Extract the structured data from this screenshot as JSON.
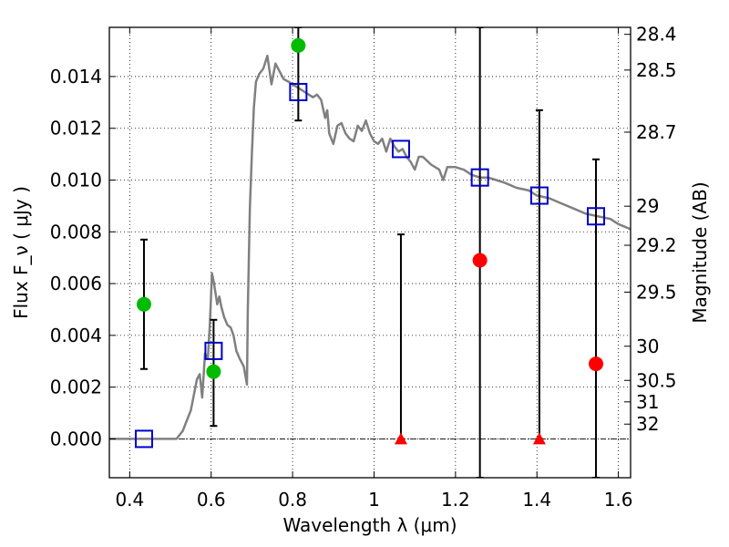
{
  "chart_data": {
    "type": "scatter",
    "xlabel": "Wavelength  λ (μm)",
    "ylabel": "Flux  F_ν  ( μJy )",
    "ylabel_right": "Magnitude (AB)",
    "xlim": [
      0.35,
      1.63
    ],
    "ylim": [
      -0.0015,
      0.0159
    ],
    "grid": true,
    "x_ticks": [
      {
        "value": 0.4,
        "label": "0.4"
      },
      {
        "value": 0.6,
        "label": "0.6"
      },
      {
        "value": 0.8,
        "label": "0.8"
      },
      {
        "value": 1.0,
        "label": "1"
      },
      {
        "value": 1.2,
        "label": "1.2"
      },
      {
        "value": 1.4,
        "label": "1.4"
      },
      {
        "value": 1.6,
        "label": "1.6"
      }
    ],
    "y_ticks": [
      {
        "value": 0.0,
        "label": "0.000"
      },
      {
        "value": 0.002,
        "label": "0.002"
      },
      {
        "value": 0.004,
        "label": "0.004"
      },
      {
        "value": 0.006,
        "label": "0.006"
      },
      {
        "value": 0.008,
        "label": "0.008"
      },
      {
        "value": 0.01,
        "label": "0.010"
      },
      {
        "value": 0.012,
        "label": "0.012"
      },
      {
        "value": 0.014,
        "label": "0.014"
      }
    ],
    "right_ticks": [
      {
        "label": "28.4",
        "flux": 0.01563
      },
      {
        "label": "28.5",
        "flux": 0.01425
      },
      {
        "label": "28.7",
        "flux": 0.01185
      },
      {
        "label": "29",
        "flux": 0.00899
      },
      {
        "label": "29.2",
        "flux": 0.00748
      },
      {
        "label": "29.5",
        "flux": 0.00567
      },
      {
        "label": "30",
        "flux": 0.00358
      },
      {
        "label": "30.5",
        "flux": 0.00226
      },
      {
        "label": "31",
        "flux": 0.00143
      },
      {
        "label": "32",
        "flux": 0.00057
      }
    ],
    "colors": {
      "model": "#808080",
      "detected": "#00bb00",
      "undetected": "#ff0000",
      "model_phot": "#0000cc",
      "errorbar": "#000000"
    },
    "model_spectrum": [
      [
        0.35,
        0.0
      ],
      [
        0.515,
        0.0
      ],
      [
        0.53,
        0.0003
      ],
      [
        0.55,
        0.0011
      ],
      [
        0.565,
        0.0023
      ],
      [
        0.572,
        0.0025
      ],
      [
        0.578,
        0.0016
      ],
      [
        0.585,
        0.0033
      ],
      [
        0.592,
        0.0031
      ],
      [
        0.597,
        0.0045
      ],
      [
        0.602,
        0.0064
      ],
      [
        0.606,
        0.0061
      ],
      [
        0.61,
        0.0057
      ],
      [
        0.615,
        0.0052
      ],
      [
        0.62,
        0.0055
      ],
      [
        0.625,
        0.0051
      ],
      [
        0.632,
        0.0047
      ],
      [
        0.64,
        0.0044
      ],
      [
        0.648,
        0.0043
      ],
      [
        0.655,
        0.004
      ],
      [
        0.662,
        0.0034
      ],
      [
        0.67,
        0.0031
      ],
      [
        0.68,
        0.0028
      ],
      [
        0.688,
        0.0021
      ],
      [
        0.69,
        0.0049
      ],
      [
        0.695,
        0.0089
      ],
      [
        0.7,
        0.011
      ],
      [
        0.705,
        0.0128
      ],
      [
        0.71,
        0.0138
      ],
      [
        0.718,
        0.0141
      ],
      [
        0.728,
        0.0143
      ],
      [
        0.738,
        0.0148
      ],
      [
        0.748,
        0.0137
      ],
      [
        0.758,
        0.0145
      ],
      [
        0.768,
        0.0142
      ],
      [
        0.778,
        0.0139
      ],
      [
        0.79,
        0.0138
      ],
      [
        0.8,
        0.0137
      ],
      [
        0.81,
        0.0136
      ],
      [
        0.82,
        0.0135
      ],
      [
        0.83,
        0.0134
      ],
      [
        0.84,
        0.0133
      ],
      [
        0.85,
        0.0132
      ],
      [
        0.86,
        0.0133
      ],
      [
        0.87,
        0.0131
      ],
      [
        0.88,
        0.0124
      ],
      [
        0.885,
        0.0127
      ],
      [
        0.89,
        0.0118
      ],
      [
        0.9,
        0.0114
      ],
      [
        0.91,
        0.0121
      ],
      [
        0.92,
        0.0122
      ],
      [
        0.93,
        0.0118
      ],
      [
        0.94,
        0.0116
      ],
      [
        0.95,
        0.0115
      ],
      [
        0.96,
        0.0121
      ],
      [
        0.97,
        0.0119
      ],
      [
        0.98,
        0.0123
      ],
      [
        0.99,
        0.0118
      ],
      [
        1.0,
        0.0115
      ],
      [
        1.01,
        0.0114
      ],
      [
        1.02,
        0.0116
      ],
      [
        1.03,
        0.0111
      ],
      [
        1.04,
        0.0116
      ],
      [
        1.05,
        0.0113
      ],
      [
        1.06,
        0.0111
      ],
      [
        1.07,
        0.0112
      ],
      [
        1.08,
        0.0109
      ],
      [
        1.09,
        0.0107
      ],
      [
        1.1,
        0.0104
      ],
      [
        1.11,
        0.0109
      ],
      [
        1.12,
        0.0109
      ],
      [
        1.14,
        0.0106
      ],
      [
        1.16,
        0.0104
      ],
      [
        1.17,
        0.01
      ],
      [
        1.18,
        0.0105
      ],
      [
        1.2,
        0.0105
      ],
      [
        1.22,
        0.0104
      ],
      [
        1.24,
        0.0102
      ],
      [
        1.26,
        0.0101
      ],
      [
        1.28,
        0.0101
      ],
      [
        1.3,
        0.01
      ],
      [
        1.32,
        0.0099
      ],
      [
        1.35,
        0.0097
      ],
      [
        1.38,
        0.0096
      ],
      [
        1.4,
        0.0094
      ],
      [
        1.43,
        0.0093
      ],
      [
        1.46,
        0.0091
      ],
      [
        1.49,
        0.0089
      ],
      [
        1.52,
        0.0087
      ],
      [
        1.55,
        0.0086
      ],
      [
        1.58,
        0.0085
      ],
      [
        1.6,
        0.0083
      ],
      [
        1.63,
        0.0081
      ]
    ],
    "model_photometry": [
      {
        "x": 0.435,
        "y": 0.0
      },
      {
        "x": 0.606,
        "y": 0.0034
      },
      {
        "x": 0.814,
        "y": 0.0134
      },
      {
        "x": 1.066,
        "y": 0.0112
      },
      {
        "x": 1.26,
        "y": 0.0101
      },
      {
        "x": 1.406,
        "y": 0.0094
      },
      {
        "x": 1.545,
        "y": 0.0086
      }
    ],
    "detections": [
      {
        "x": 0.435,
        "y": 0.0052,
        "yerr_low": 0.0027,
        "yerr_high": 0.0077
      },
      {
        "x": 0.606,
        "y": 0.0026,
        "yerr_low": 0.0005,
        "yerr_high": 0.0046
      },
      {
        "x": 0.814,
        "y": 0.0152,
        "yerr_low": 0.0123,
        "yerr_high": 0.0159
      }
    ],
    "nondetections": [
      {
        "x": 1.26,
        "y": 0.0069,
        "yerr_low": -0.0015,
        "yerr_high": 0.0159
      },
      {
        "x": 1.545,
        "y": 0.0029,
        "yerr_low": -0.0015,
        "yerr_high": 0.0108
      }
    ],
    "upper_limits": [
      {
        "x": 1.066,
        "y": 0.0,
        "upper": 0.0079
      },
      {
        "x": 1.406,
        "y": 0.0,
        "upper": 0.0127
      }
    ]
  }
}
